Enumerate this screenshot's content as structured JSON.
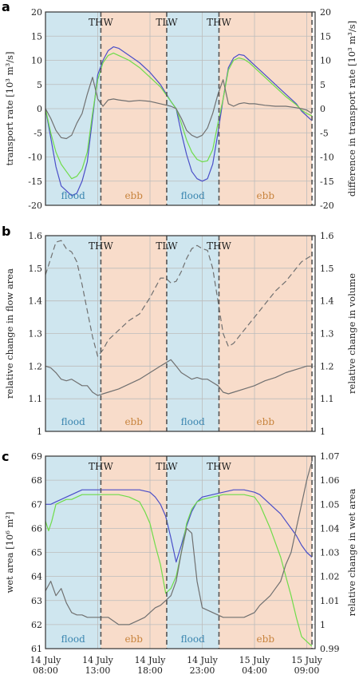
{
  "chart_data": [
    {
      "panel": "a",
      "type": "line",
      "ylabel_left": "transport rate  [10³ m³/s]",
      "ylabel_right": "difference in transport rate  [10³ m³/s]",
      "ylim_left": [
        -20,
        20
      ],
      "yticks_left": [
        "-20",
        "-15",
        "-10",
        "-5",
        "0",
        "5",
        "10",
        "15",
        "20"
      ],
      "ylim_right": [
        -20,
        20
      ],
      "yticks_right": [
        "-20",
        "-15",
        "-10",
        "-5",
        "0",
        "5",
        "10",
        "15",
        "20"
      ],
      "colors": {
        "blue": "#4a4ec8",
        "green": "#6fdc4a",
        "gray": "#707070"
      },
      "series": [
        {
          "axis": "left",
          "color": "blue",
          "x": [
            8.0,
            8.5,
            9.0,
            9.5,
            10.0,
            10.5,
            11.0,
            11.5,
            12.0,
            12.5,
            13.0,
            13.5,
            14.0,
            14.5,
            15.0,
            16.0,
            17.0,
            18.0,
            19.0,
            20.0,
            20.5,
            21.0,
            21.5,
            22.0,
            22.5,
            23.0,
            23.5,
            24.0,
            24.5,
            25.0,
            25.5,
            26.0,
            26.5,
            27.0,
            27.5,
            28.0,
            29.0,
            30.0,
            31.0,
            32.0,
            32.5,
            33.0,
            33.5
          ],
          "values": [
            0,
            -6,
            -12,
            -16,
            -17,
            -18,
            -17.5,
            -15,
            -11,
            -2,
            7,
            10,
            12,
            12.8,
            12.5,
            11,
            9.5,
            7.5,
            5,
            1.5,
            0,
            -5,
            -9.5,
            -13,
            -14.5,
            -15,
            -14.5,
            -11.5,
            -5,
            2,
            8.5,
            10.5,
            11.2,
            11,
            10,
            9,
            7,
            5,
            3,
            1,
            -0.5,
            -1.5,
            -2.5
          ]
        },
        {
          "axis": "left",
          "color": "green",
          "x": [
            8.0,
            8.5,
            9.0,
            9.5,
            10.0,
            10.5,
            11.0,
            11.5,
            12.0,
            12.5,
            13.0,
            13.5,
            14.0,
            14.5,
            15.0,
            16.0,
            17.0,
            18.0,
            19.0,
            20.0,
            20.5,
            21.0,
            21.5,
            22.0,
            22.5,
            23.0,
            23.5,
            24.0,
            24.5,
            25.0,
            25.5,
            26.0,
            26.5,
            27.0,
            27.5,
            28.0,
            29.0,
            30.0,
            31.0,
            32.0,
            32.5,
            33.0,
            33.5
          ],
          "values": [
            0,
            -5,
            -9,
            -11.5,
            -13,
            -14.5,
            -14,
            -12.5,
            -9,
            -1,
            6,
            9.5,
            11,
            11.5,
            11,
            10,
            8.5,
            6.5,
            4.5,
            1.5,
            0,
            -3,
            -6.5,
            -9,
            -10.5,
            -11,
            -10.8,
            -8.5,
            -3,
            2,
            8,
            10,
            10.5,
            10.2,
            9.5,
            8.5,
            6.5,
            4.5,
            2.5,
            0.8,
            -0.3,
            -1,
            -1.5
          ]
        },
        {
          "axis": "right",
          "color": "gray",
          "x": [
            8.0,
            8.5,
            9.0,
            9.5,
            10.0,
            10.5,
            11.0,
            11.5,
            12.0,
            12.5,
            13.0,
            13.5,
            14.0,
            14.5,
            15.0,
            16.0,
            17.0,
            18.0,
            19.0,
            20.0,
            20.5,
            21.0,
            21.5,
            22.0,
            22.5,
            23.0,
            23.5,
            24.0,
            24.5,
            25.0,
            25.5,
            26.0,
            26.5,
            27.0,
            27.5,
            28.0,
            29.0,
            30.0,
            31.0,
            32.0,
            32.5,
            33.0,
            33.5
          ],
          "values": [
            0,
            -2,
            -4.5,
            -6,
            -6.2,
            -5.5,
            -3,
            -1,
            3,
            6.5,
            2,
            0.5,
            1.8,
            2,
            1.8,
            1.5,
            1.7,
            1.5,
            1,
            0.5,
            0,
            -2,
            -4.5,
            -5.5,
            -6,
            -5.5,
            -4,
            -1,
            3,
            6,
            1,
            0.5,
            1,
            1.2,
            1,
            1,
            0.7,
            0.5,
            0.5,
            0.2,
            0,
            -0.3,
            -1
          ]
        }
      ]
    },
    {
      "panel": "b",
      "type": "line",
      "ylabel_left": "relative change in flow area",
      "ylabel_right": "relative change in volume",
      "ylim_left": [
        1.0,
        1.6
      ],
      "yticks_left": [
        "1",
        "1.1",
        "1.2",
        "1.3",
        "1.4",
        "1.5",
        "1.6"
      ],
      "ylim_right": [
        1.0,
        1.6
      ],
      "yticks_right": [
        "1",
        "1.1",
        "1.2",
        "1.3",
        "1.4",
        "1.5",
        "1.6"
      ],
      "series": [
        {
          "axis": "left",
          "style": "dashed",
          "color": "gray",
          "x": [
            8.0,
            8.5,
            9.0,
            9.5,
            10.0,
            10.5,
            11.0,
            11.5,
            12.0,
            12.5,
            13.0,
            13.5,
            14.0,
            15.0,
            16.0,
            17.0,
            18.0,
            19.0,
            19.5,
            20.0,
            20.5,
            21.0,
            21.5,
            22.0,
            22.5,
            23.0,
            23.5,
            24.0,
            24.5,
            25.0,
            25.5,
            26.0,
            27.0,
            28.0,
            29.0,
            30.0,
            31.0,
            32.0,
            32.5,
            33.0,
            33.5
          ],
          "values": [
            1.48,
            1.53,
            1.58,
            1.585,
            1.56,
            1.55,
            1.52,
            1.45,
            1.37,
            1.29,
            1.23,
            1.25,
            1.28,
            1.31,
            1.34,
            1.36,
            1.41,
            1.47,
            1.47,
            1.455,
            1.46,
            1.49,
            1.53,
            1.56,
            1.57,
            1.56,
            1.555,
            1.5,
            1.4,
            1.3,
            1.26,
            1.27,
            1.31,
            1.35,
            1.39,
            1.43,
            1.46,
            1.5,
            1.52,
            1.53,
            1.54
          ]
        },
        {
          "axis": "left",
          "style": "solid",
          "color": "gray",
          "x": [
            8.0,
            8.5,
            9.0,
            9.5,
            10.0,
            10.5,
            11.0,
            11.5,
            12.0,
            12.5,
            13.0,
            13.5,
            14.0,
            15.0,
            16.0,
            17.0,
            18.0,
            19.0,
            19.5,
            20.0,
            20.5,
            21.0,
            21.5,
            22.0,
            22.5,
            23.0,
            23.5,
            24.0,
            24.5,
            25.0,
            25.5,
            26.0,
            27.0,
            28.0,
            29.0,
            30.0,
            31.0,
            32.0,
            32.5,
            33.0,
            33.5
          ],
          "values": [
            1.2,
            1.195,
            1.18,
            1.16,
            1.155,
            1.16,
            1.15,
            1.14,
            1.14,
            1.12,
            1.11,
            1.115,
            1.12,
            1.13,
            1.145,
            1.16,
            1.18,
            1.2,
            1.21,
            1.22,
            1.2,
            1.18,
            1.17,
            1.16,
            1.165,
            1.16,
            1.16,
            1.15,
            1.14,
            1.12,
            1.115,
            1.12,
            1.13,
            1.14,
            1.155,
            1.165,
            1.18,
            1.19,
            1.195,
            1.2,
            1.2
          ]
        }
      ]
    },
    {
      "panel": "c",
      "type": "line",
      "ylabel_left": "wet area  [10⁶ m²]",
      "ylabel_right": "relative change in wet area",
      "ylim_left": [
        61,
        69
      ],
      "yticks_left": [
        "61",
        "62",
        "63",
        "64",
        "65",
        "66",
        "67",
        "68",
        "69"
      ],
      "ylim_right": [
        0.99,
        1.07
      ],
      "yticks_right": [
        "0.99",
        "1",
        "1.01",
        "1.02",
        "1.03",
        "1.04",
        "1.05",
        "1.06",
        "1.07"
      ],
      "series": [
        {
          "axis": "left",
          "color": "blue",
          "x": [
            8.0,
            8.5,
            9.0,
            9.5,
            10.0,
            10.5,
            11.0,
            11.5,
            12.0,
            12.5,
            13.0,
            14.0,
            15.0,
            16.0,
            17.0,
            18.0,
            18.5,
            19.0,
            19.5,
            20.0,
            20.5,
            21.0,
            21.5,
            22.0,
            22.5,
            23.0,
            24.0,
            25.0,
            26.0,
            27.0,
            28.0,
            28.5,
            29.0,
            29.5,
            30.0,
            30.5,
            31.0,
            31.5,
            32.0,
            32.5,
            33.0,
            33.5
          ],
          "values": [
            67,
            67,
            67.1,
            67.2,
            67.3,
            67.4,
            67.5,
            67.6,
            67.6,
            67.6,
            67.6,
            67.6,
            67.6,
            67.6,
            67.6,
            67.5,
            67.3,
            67,
            66.5,
            65.6,
            64.6,
            65.3,
            66.1,
            66.7,
            67.1,
            67.3,
            67.4,
            67.5,
            67.6,
            67.6,
            67.5,
            67.4,
            67.2,
            67,
            66.8,
            66.6,
            66.3,
            66,
            65.7,
            65.3,
            65,
            64.8
          ]
        },
        {
          "axis": "left",
          "color": "green",
          "x": [
            8.0,
            8.3,
            8.6,
            9.0,
            9.5,
            10.0,
            10.5,
            11.0,
            11.5,
            12.0,
            13.0,
            14.0,
            15.0,
            16.0,
            17.0,
            17.5,
            18.0,
            18.5,
            19.0,
            19.5,
            20.0,
            20.5,
            21.0,
            21.5,
            22.0,
            22.5,
            23.0,
            24.0,
            25.0,
            26.0,
            27.0,
            28.0,
            28.5,
            29.0,
            29.5,
            30.0,
            30.5,
            31.0,
            31.5,
            32.0,
            32.5,
            33.0,
            33.5
          ],
          "values": [
            66.3,
            65.9,
            66.3,
            67,
            67.1,
            67.2,
            67.2,
            67.3,
            67.4,
            67.4,
            67.4,
            67.4,
            67.4,
            67.3,
            67.1,
            66.7,
            66.2,
            65.3,
            64.5,
            63.3,
            63.5,
            64,
            65,
            66.2,
            66.8,
            67.1,
            67.2,
            67.3,
            67.4,
            67.4,
            67.4,
            67.3,
            67,
            66.5,
            66,
            65.4,
            64.8,
            64,
            63.2,
            62.3,
            61.5,
            61.3,
            61.1
          ]
        },
        {
          "axis": "right",
          "color": "gray",
          "x": [
            8.0,
            8.5,
            9.0,
            9.5,
            10.0,
            10.5,
            11.0,
            11.5,
            12.0,
            12.5,
            13.0,
            14.0,
            15.0,
            16.0,
            16.5,
            17.0,
            17.5,
            18.0,
            18.5,
            19.0,
            19.5,
            20.0,
            20.5,
            21.0,
            21.5,
            22.0,
            22.5,
            23.0,
            24.0,
            25.0,
            26.0,
            27.0,
            27.5,
            28.0,
            28.5,
            29.0,
            29.5,
            30.0,
            30.5,
            31.0,
            31.5,
            32.0,
            32.5,
            33.0,
            33.5
          ],
          "values": [
            1.014,
            1.018,
            1.012,
            1.015,
            1.009,
            1.005,
            1.004,
            1.004,
            1.003,
            1.003,
            1.003,
            1.003,
            1.0,
            1.0,
            1.001,
            1.002,
            1.003,
            1.005,
            1.007,
            1.008,
            1.01,
            1.012,
            1.018,
            1.03,
            1.04,
            1.038,
            1.018,
            1.007,
            1.005,
            1.003,
            1.003,
            1.003,
            1.004,
            1.005,
            1.008,
            1.01,
            1.012,
            1.015,
            1.018,
            1.025,
            1.03,
            1.04,
            1.05,
            1.06,
            1.068
          ]
        }
      ]
    }
  ],
  "shared": {
    "xlim": [
      8.0,
      33.8
    ],
    "events": [
      {
        "label": "THW",
        "x": 13.3,
        "type": "boundary"
      },
      {
        "label": "TLW",
        "x": 19.6,
        "type": "boundary"
      },
      {
        "label": "THW",
        "x": 24.6,
        "type": "boundary"
      },
      {
        "label": "",
        "x": 33.5,
        "type": "boundary"
      }
    ],
    "phases": [
      {
        "label": "flood",
        "from": 8.0,
        "to": 13.3,
        "color": "#cfe6ef"
      },
      {
        "label": "ebb",
        "from": 13.3,
        "to": 19.6,
        "color": "#f8dcca"
      },
      {
        "label": "flood",
        "from": 19.6,
        "to": 24.6,
        "color": "#cfe6ef"
      },
      {
        "label": "ebb",
        "from": 24.6,
        "to": 33.5,
        "color": "#f8dcca"
      }
    ],
    "xticks": [
      {
        "x": 8,
        "line1": "14 July",
        "line2": "08:00"
      },
      {
        "x": 13,
        "line1": "14 July",
        "line2": "13:00"
      },
      {
        "x": 18,
        "line1": "14 July",
        "line2": "18:00"
      },
      {
        "x": 23,
        "line1": "14 July",
        "line2": "23:00"
      },
      {
        "x": 28,
        "line1": "15 July",
        "line2": "04:00"
      },
      {
        "x": 33,
        "line1": "15 July",
        "line2": "09:00"
      }
    ]
  }
}
